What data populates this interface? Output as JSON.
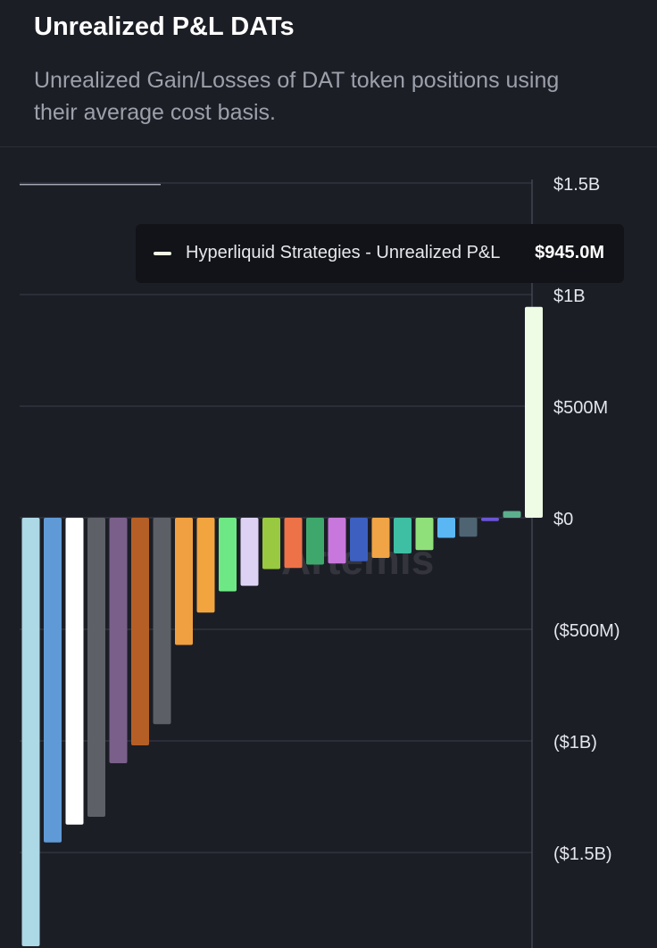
{
  "header": {
    "title": "Unrealized P&L DATs",
    "subtitle": "Unrealized Gain/Losses of DAT token positions using their average cost basis."
  },
  "watermark": "Artemis",
  "tooltip": {
    "label": "Hyperliquid Strategies - Unrealized P&L",
    "value": "$945.0M",
    "color": "#eefbe5"
  },
  "chart_data": {
    "type": "bar",
    "title": "Unrealized P&L DATs",
    "ylim": [
      -1920,
      1500
    ],
    "yticks": [
      {
        "value": 1500,
        "label": "$1.5B"
      },
      {
        "value": 1000,
        "label": "$1B"
      },
      {
        "value": 500,
        "label": "$500M"
      },
      {
        "value": 0,
        "label": "$0"
      },
      {
        "value": -500,
        "label": "($500M)"
      },
      {
        "value": -1000,
        "label": "($1B)"
      },
      {
        "value": -1500,
        "label": "($1.5B)"
      }
    ],
    "y_axis_side": "right",
    "grid": true,
    "units": "USD millions",
    "bars": [
      {
        "value": -1920,
        "color": "#add8e6"
      },
      {
        "value": -1455,
        "color": "#5f9ad6"
      },
      {
        "value": -1375,
        "color": "#ffffff"
      },
      {
        "value": -1340,
        "color": "#5d6066"
      },
      {
        "value": -1100,
        "color": "#7a5f8a"
      },
      {
        "value": -1020,
        "color": "#b55f26"
      },
      {
        "value": -925,
        "color": "#5d5f66"
      },
      {
        "value": -570,
        "color": "#f0a040"
      },
      {
        "value": -425,
        "color": "#f2a43f"
      },
      {
        "value": -330,
        "color": "#6ee884"
      },
      {
        "value": -305,
        "color": "#ddd2f3"
      },
      {
        "value": -230,
        "color": "#99c940"
      },
      {
        "value": -225,
        "color": "#ee7247"
      },
      {
        "value": -210,
        "color": "#3ea86c"
      },
      {
        "value": -205,
        "color": "#c877dc"
      },
      {
        "value": -195,
        "color": "#3c5fc0"
      },
      {
        "value": -180,
        "color": "#f0a445"
      },
      {
        "value": -160,
        "color": "#3ebea2"
      },
      {
        "value": -145,
        "color": "#8fe07a"
      },
      {
        "value": -90,
        "color": "#5ab7f4"
      },
      {
        "value": -85,
        "color": "#4e6473"
      },
      {
        "value": -15,
        "color": "#6a55d8"
      },
      {
        "value": 30,
        "color": "#5cae8c"
      },
      {
        "value": 945,
        "color": "#eefbe5",
        "name": "Hyperliquid Strategies - Unrealized P&L"
      }
    ]
  }
}
